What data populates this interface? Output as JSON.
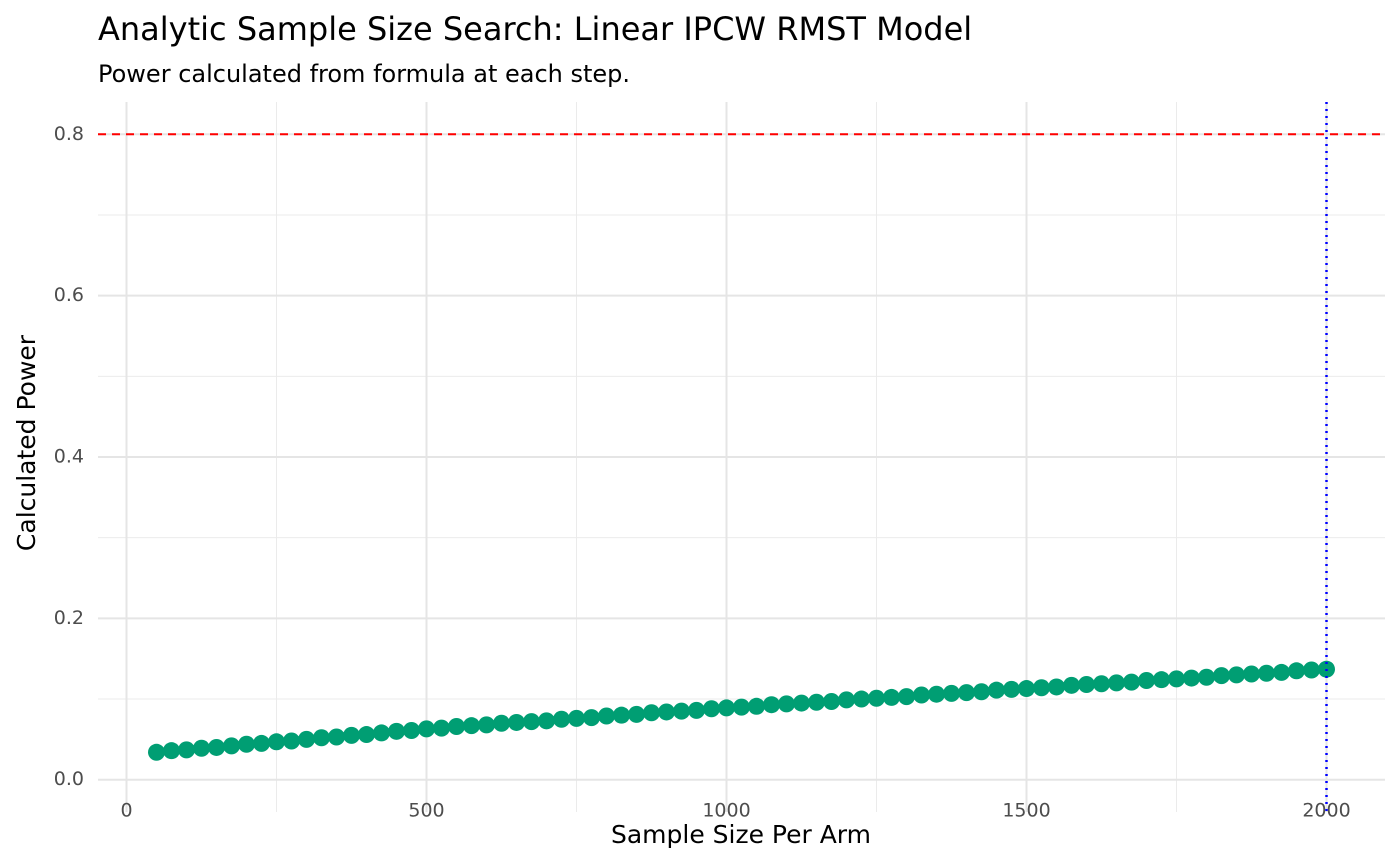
{
  "chart_data": {
    "type": "scatter",
    "title": "Analytic Sample Size Search: Linear IPCW RMST Model",
    "subtitle": "Power calculated from formula at each step.",
    "x_label": "Sample Size Per Arm",
    "y_label": "Calculated Power",
    "x": [
      50,
      75,
      100,
      125,
      150,
      175,
      200,
      225,
      250,
      275,
      300,
      325,
      350,
      375,
      400,
      425,
      450,
      475,
      500,
      525,
      550,
      575,
      600,
      625,
      650,
      675,
      700,
      725,
      750,
      775,
      800,
      825,
      850,
      875,
      900,
      925,
      950,
      975,
      1000,
      1025,
      1050,
      1075,
      1100,
      1125,
      1150,
      1175,
      1200,
      1225,
      1250,
      1275,
      1300,
      1325,
      1350,
      1375,
      1400,
      1425,
      1450,
      1475,
      1500,
      1525,
      1550,
      1575,
      1600,
      1625,
      1650,
      1675,
      1700,
      1725,
      1750,
      1775,
      1800,
      1825,
      1850,
      1875,
      1900,
      1925,
      1950,
      1975,
      2000
    ],
    "values": [
      0.034,
      0.036,
      0.037,
      0.039,
      0.04,
      0.042,
      0.044,
      0.045,
      0.047,
      0.048,
      0.05,
      0.052,
      0.053,
      0.055,
      0.056,
      0.058,
      0.06,
      0.061,
      0.063,
      0.064,
      0.066,
      0.067,
      0.068,
      0.07,
      0.071,
      0.072,
      0.073,
      0.075,
      0.076,
      0.077,
      0.079,
      0.08,
      0.081,
      0.083,
      0.084,
      0.085,
      0.086,
      0.088,
      0.089,
      0.09,
      0.091,
      0.093,
      0.094,
      0.095,
      0.096,
      0.097,
      0.099,
      0.1,
      0.101,
      0.102,
      0.103,
      0.105,
      0.106,
      0.107,
      0.108,
      0.109,
      0.111,
      0.112,
      0.113,
      0.114,
      0.115,
      0.117,
      0.118,
      0.119,
      0.12,
      0.121,
      0.123,
      0.124,
      0.125,
      0.126,
      0.127,
      0.129,
      0.13,
      0.131,
      0.132,
      0.133,
      0.135,
      0.136,
      0.137
    ],
    "color": "#009e73",
    "xlim": [
      -47.5,
      2097.5
    ],
    "ylim": [
      -0.04,
      0.84
    ],
    "xticks": [
      0,
      500,
      1000,
      1500,
      2000
    ],
    "yticks": [
      {
        "value": 0,
        "label": "0.0"
      },
      0.2,
      0.4,
      0.6,
      0.8
    ],
    "minor_xticks": [
      250,
      750,
      1250,
      1750
    ],
    "minor_yticks": [
      0.1,
      0.3,
      0.5,
      0.7
    ],
    "hlines": [
      {
        "value": 0.8,
        "color": "#ff0000"
      }
    ],
    "vlines": [
      {
        "value": 2000,
        "color": "#0000ff"
      }
    ],
    "grid": true
  }
}
